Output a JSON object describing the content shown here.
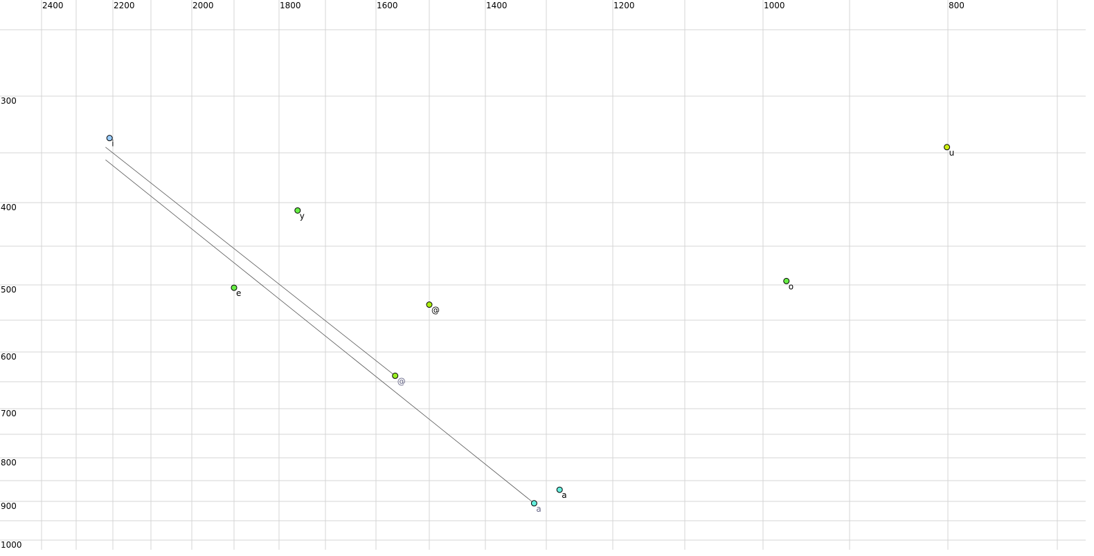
{
  "chart_data": {
    "type": "scatter",
    "title": "",
    "xlabel": "",
    "ylabel": "",
    "x_axis": {
      "reversed": true,
      "scale": "log",
      "range": [
        2450,
        680
      ],
      "tick_labels": [
        2400,
        2200,
        2000,
        1800,
        1600,
        1400,
        1200,
        1000,
        800
      ],
      "gridlines": [
        2400,
        2300,
        2200,
        2100,
        2000,
        1900,
        1800,
        1700,
        1600,
        1500,
        1400,
        1300,
        1200,
        1100,
        1000,
        900,
        800,
        700
      ]
    },
    "y_axis": {
      "reversed": false,
      "scale": "log",
      "range": [
        230,
        1010
      ],
      "tick_labels": [
        300,
        400,
        500,
        600,
        700,
        800,
        900,
        1000
      ],
      "gridlines": [
        250,
        300,
        350,
        400,
        450,
        500,
        550,
        600,
        650,
        700,
        750,
        800,
        850,
        900,
        950,
        1000
      ]
    },
    "grid": true,
    "points": [
      {
        "label": "i",
        "x": 2209,
        "y": 337,
        "color": "#99ccff",
        "label_color": "#000000"
      },
      {
        "label": "u",
        "x": 801,
        "y": 345,
        "color": "#ccee11",
        "label_color": "#000000"
      },
      {
        "label": "y",
        "x": 1760,
        "y": 409,
        "color": "#66ee44",
        "label_color": "#000000"
      },
      {
        "label": "e",
        "x": 1900,
        "y": 504,
        "color": "#66ee44",
        "label_color": "#000000"
      },
      {
        "label": "@",
        "x": 1500,
        "y": 528,
        "color": "#aaee11",
        "label_color": "#000000"
      },
      {
        "label": "o",
        "x": 973,
        "y": 495,
        "color": "#66ee44",
        "label_color": "#000000"
      },
      {
        "label": "@",
        "x": 1564,
        "y": 640,
        "color": "#99ee22",
        "label_color": "#666688"
      },
      {
        "label": "a",
        "x": 1280,
        "y": 872,
        "color": "#66eedd",
        "label_color": "#000000"
      },
      {
        "label": "a",
        "x": 1320,
        "y": 905,
        "color": "#66eedd",
        "label_color": "#666688"
      }
    ],
    "lines": [
      {
        "from": [
          2220,
          345
        ],
        "to": [
          1564,
          640
        ],
        "color": "#555555"
      },
      {
        "from": [
          2220,
          357
        ],
        "to": [
          1320,
          905
        ],
        "color": "#555555"
      }
    ]
  }
}
